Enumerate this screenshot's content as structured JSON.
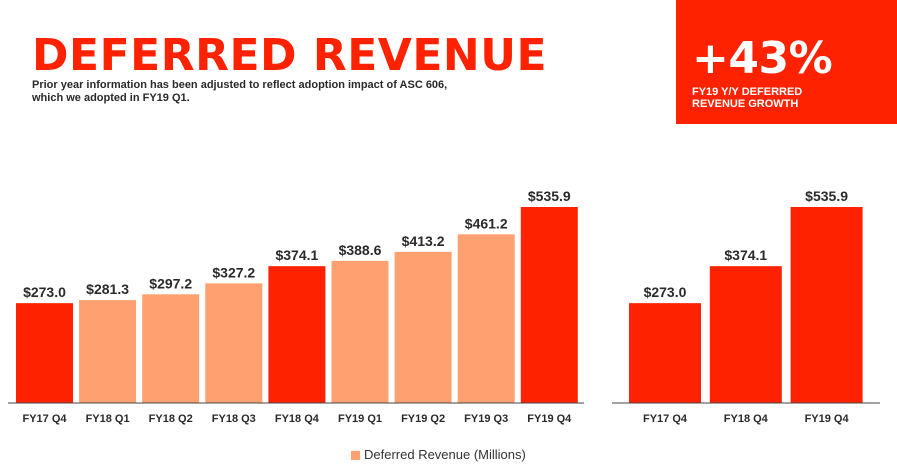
{
  "header": {
    "title": "DEFERRED REVENUE",
    "subtitle": "Prior year information has been adjusted to reflect adoption impact of ASC 606, which we adopted in FY19 Q1."
  },
  "kpi": {
    "value": "+43%",
    "label": "FY19 Y/Y DEFERRED REVENUE GROWTH"
  },
  "colors": {
    "accent": "#ff2200",
    "light": "#ffa070",
    "axis": "#444444"
  },
  "chart_data": [
    {
      "type": "bar",
      "title": "",
      "categories": [
        "FY17 Q4",
        "FY18 Q1",
        "FY18 Q2",
        "FY18 Q3",
        "FY18 Q4",
        "FY19 Q1",
        "FY19 Q2",
        "FY19 Q3",
        "FY19 Q4"
      ],
      "series": [
        {
          "name": "Deferred Revenue (Millions)",
          "values": [
            273.0,
            281.3,
            297.2,
            327.2,
            374.1,
            388.6,
            413.2,
            461.2,
            535.9
          ]
        }
      ],
      "data_labels": [
        "$273.0",
        "$281.3",
        "$297.2",
        "$327.2",
        "$374.1",
        "$388.6",
        "$413.2",
        "$461.2",
        "$535.9"
      ],
      "highlight": [
        true,
        false,
        false,
        false,
        true,
        false,
        false,
        false,
        true
      ],
      "ylim": [
        0,
        560
      ],
      "grid": false,
      "legend": "bottom"
    },
    {
      "type": "bar",
      "title": "",
      "categories": [
        "FY17 Q4",
        "FY18 Q4",
        "FY19 Q4"
      ],
      "series": [
        {
          "values": [
            273.0,
            374.1,
            535.9
          ]
        }
      ],
      "data_labels": [
        "$273.0",
        "$374.1",
        "$535.9"
      ],
      "highlight": [
        true,
        true,
        true
      ],
      "ylim": [
        0,
        560
      ],
      "grid": false
    }
  ],
  "legend": {
    "label": "Deferred Revenue (Millions)"
  }
}
